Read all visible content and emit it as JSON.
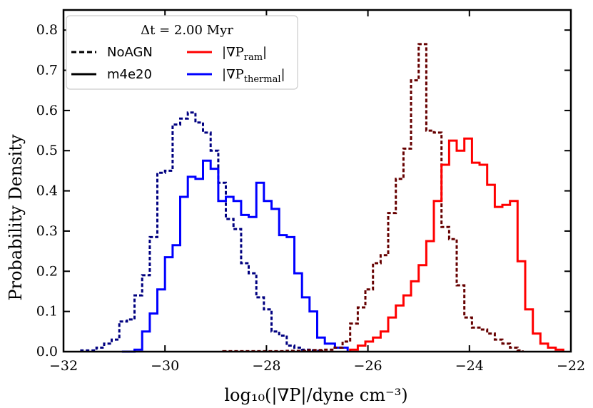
{
  "chart_data": {
    "type": "step-histogram",
    "title": "",
    "xlabel": "log₁₀(|∇P|/dyne cm⁻³)",
    "ylabel": "Probability Density",
    "xlim": [
      -32,
      -22
    ],
    "ylim": [
      0,
      0.85
    ],
    "xticks": [
      -32,
      -30,
      -28,
      -26,
      -24,
      -22
    ],
    "xtick_labels": [
      "−32",
      "−30",
      "−28",
      "−26",
      "−24",
      "−22"
    ],
    "yticks": [
      0,
      0.1,
      0.2,
      0.3,
      0.4,
      0.5,
      0.6,
      0.7,
      0.8
    ],
    "ytick_labels": [
      "0.0",
      "0.1",
      "0.2",
      "0.3",
      "0.4",
      "0.5",
      "0.6",
      "0.7",
      "0.8"
    ],
    "legend": {
      "title": "Δt = 2.00 Myr",
      "entries": [
        {
          "label": "NoAGN",
          "style": "dashed",
          "color": "#000000"
        },
        {
          "label": "m4e20",
          "style": "solid",
          "color": "#000000"
        },
        {
          "label": "|∇P",
          "sub": "ram",
          "suffix": "|",
          "style": "solid",
          "color": "#ff0000"
        },
        {
          "label": "|∇P",
          "sub": "thermal",
          "suffix": "|",
          "style": "solid",
          "color": "#0000ff"
        }
      ]
    },
    "series": [
      {
        "name": "NoAGN thermal",
        "color": "#000080",
        "style": "dashed",
        "edges": [
          -31.65,
          -31.35,
          -31.2,
          -31.05,
          -30.9,
          -30.75,
          -30.6,
          -30.45,
          -30.3,
          -30.15,
          -30.0,
          -29.85,
          -29.7,
          -29.55,
          -29.4,
          -29.25,
          -29.1,
          -28.95,
          -28.8,
          -28.65,
          -28.5,
          -28.35,
          -28.2,
          -28.05,
          -27.9,
          -27.75,
          -27.6,
          -27.45,
          -27.3,
          -27.15,
          -27.0,
          -26.9
        ],
        "values": [
          0.003,
          0.01,
          0.02,
          0.03,
          0.075,
          0.08,
          0.14,
          0.19,
          0.285,
          0.445,
          0.45,
          0.565,
          0.58,
          0.595,
          0.57,
          0.545,
          0.5,
          0.42,
          0.33,
          0.305,
          0.22,
          0.195,
          0.135,
          0.105,
          0.05,
          0.04,
          0.015,
          0.01,
          0.005,
          0.003,
          0.002
        ]
      },
      {
        "name": "m4e20 thermal",
        "color": "#0000ff",
        "style": "solid",
        "edges": [
          -30.85,
          -30.6,
          -30.45,
          -30.3,
          -30.15,
          -30.0,
          -29.85,
          -29.7,
          -29.55,
          -29.4,
          -29.25,
          -29.1,
          -28.95,
          -28.8,
          -28.65,
          -28.5,
          -28.35,
          -28.2,
          -28.05,
          -27.9,
          -27.75,
          -27.6,
          -27.45,
          -27.3,
          -27.15,
          -27.0,
          -26.85,
          -26.65,
          -26.4
        ],
        "values": [
          0.0,
          0.005,
          0.05,
          0.095,
          0.155,
          0.235,
          0.265,
          0.385,
          0.435,
          0.43,
          0.475,
          0.455,
          0.375,
          0.385,
          0.375,
          0.34,
          0.335,
          0.42,
          0.375,
          0.355,
          0.29,
          0.285,
          0.195,
          0.135,
          0.1,
          0.035,
          0.02,
          0.01
        ]
      },
      {
        "name": "NoAGN ram",
        "color": "#660000",
        "style": "dashed",
        "edges": [
          -28.85,
          -27.6,
          -27.2,
          -26.9,
          -26.7,
          -26.5,
          -26.35,
          -26.2,
          -26.05,
          -25.9,
          -25.75,
          -25.6,
          -25.45,
          -25.3,
          -25.15,
          -25.0,
          -24.85,
          -24.7,
          -24.55,
          -24.4,
          -24.25,
          -24.1,
          -23.95,
          -23.8,
          -23.65,
          -23.5,
          -23.35,
          -23.2,
          -23.05,
          -22.95
        ],
        "values": [
          0.001,
          0.002,
          0.004,
          0.005,
          0.01,
          0.025,
          0.07,
          0.11,
          0.155,
          0.22,
          0.24,
          0.345,
          0.43,
          0.505,
          0.675,
          0.765,
          0.55,
          0.545,
          0.31,
          0.28,
          0.165,
          0.085,
          0.06,
          0.055,
          0.045,
          0.03,
          0.02,
          0.01,
          0.003
        ]
      },
      {
        "name": "m4e20 ram",
        "color": "#ff0000",
        "style": "solid",
        "edges": [
          -26.35,
          -26.2,
          -26.05,
          -25.9,
          -25.75,
          -25.6,
          -25.45,
          -25.3,
          -25.15,
          -25.0,
          -24.85,
          -24.7,
          -24.55,
          -24.4,
          -24.25,
          -24.1,
          -23.95,
          -23.8,
          -23.65,
          -23.5,
          -23.35,
          -23.2,
          -23.05,
          -22.9,
          -22.75,
          -22.6,
          -22.45,
          -22.3,
          -22.15
        ],
        "values": [
          0.005,
          0.015,
          0.025,
          0.035,
          0.05,
          0.085,
          0.115,
          0.14,
          0.175,
          0.215,
          0.275,
          0.375,
          0.465,
          0.525,
          0.5,
          0.53,
          0.47,
          0.465,
          0.415,
          0.36,
          0.365,
          0.375,
          0.225,
          0.105,
          0.045,
          0.02,
          0.01,
          0.005
        ]
      }
    ]
  }
}
